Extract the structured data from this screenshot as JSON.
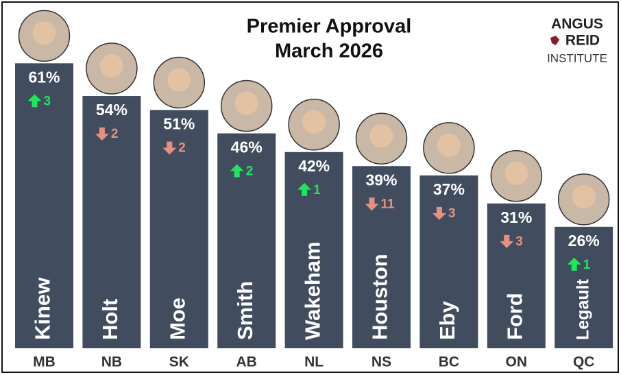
{
  "chart_data": {
    "type": "bar",
    "title": "Premier Approval",
    "subtitle": "March 2026",
    "logo": [
      "ANGUS",
      "REID",
      "INSTITUTE"
    ],
    "categories": [
      "MB",
      "NB",
      "SK",
      "AB",
      "NL",
      "NS",
      "BC",
      "ON",
      "QC"
    ],
    "premiers": [
      "Kinew",
      "Holt",
      "Moe",
      "Smith",
      "Wakeham",
      "Houston",
      "Eby",
      "Ford",
      "Legault"
    ],
    "values": [
      61,
      54,
      51,
      46,
      42,
      39,
      37,
      31,
      26
    ],
    "value_labels": [
      "61%",
      "54%",
      "51%",
      "46%",
      "42%",
      "39%",
      "37%",
      "31%",
      "26%"
    ],
    "changes": [
      3,
      -2,
      -2,
      2,
      1,
      -11,
      -3,
      -3,
      1
    ],
    "change_labels": [
      "3",
      "2",
      "2",
      "2",
      "1",
      "11",
      "3",
      "3",
      "1"
    ],
    "color": "#414d5f",
    "up_color": "#1ee65a",
    "down_color": "#e8907e",
    "ylim": [
      0,
      70
    ]
  }
}
